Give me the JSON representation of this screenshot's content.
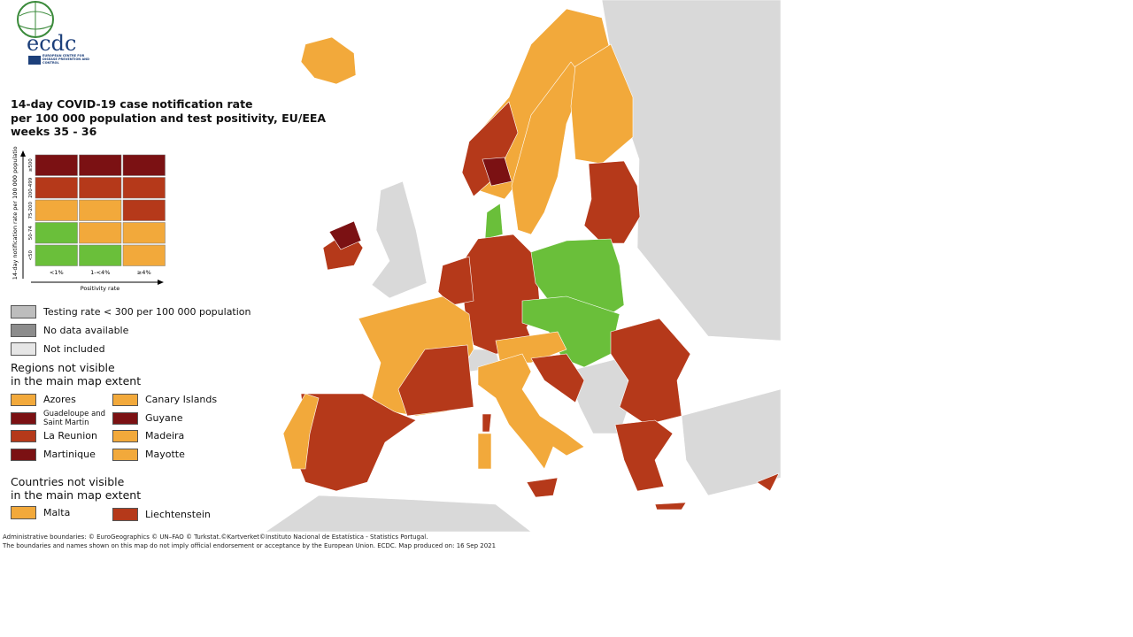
{
  "header": {
    "logo_text": "ecdc",
    "logo_subtitle": "EUROPEAN CENTRE FOR DISEASE PREVENTION AND CONTROL",
    "title": [
      "14-day COVID-19 case notification rate",
      "per 100 000 population and test positivity, EU/EEA",
      "weeks 35 - 36"
    ]
  },
  "matrix": {
    "y_axis_label": "14-day notification rate per 100 000 population",
    "rows": [
      "≥500",
      "200-499",
      "75-200",
      "50-74",
      "<50"
    ],
    "columns": [
      "<1%",
      "1-<4%",
      "≥4%"
    ],
    "x_axis_label": "Positivity rate",
    "cells": [
      [
        "#7b1113",
        "#7b1113",
        "#7b1113"
      ],
      [
        "#b5391a",
        "#b5391a",
        "#b5391a"
      ],
      [
        "#f2a93b",
        "#f2a93b",
        "#b5391a"
      ],
      [
        "#6abf3a",
        "#f2a93b",
        "#f2a93b"
      ],
      [
        "#6abf3a",
        "#6abf3a",
        "#f2a93b"
      ]
    ]
  },
  "legend": {
    "items": [
      {
        "label": "Testing rate < 300 per 100 000 population",
        "color": "#bdbdbd"
      },
      {
        "label": "No data available",
        "color": "#8c8c8c"
      },
      {
        "label": "Not included",
        "color": "#e6e6e6"
      }
    ],
    "regions_title": [
      "Regions not visible",
      "in the main map extent"
    ],
    "regions": [
      {
        "label": "Azores",
        "color": "#f2a93b"
      },
      {
        "label": "Canary Islands",
        "color": "#f2a93b"
      },
      {
        "label": "Guadeloupe and Saint Martin",
        "color": "#7b1113"
      },
      {
        "label": "Guyane",
        "color": "#7b1113"
      },
      {
        "label": "La Reunion",
        "color": "#b5391a"
      },
      {
        "label": "Madeira",
        "color": "#f2a93b"
      },
      {
        "label": "Martinique",
        "color": "#7b1113"
      },
      {
        "label": "Mayotte",
        "color": "#f2a93b"
      }
    ],
    "countries_title": [
      "Countries not visible",
      "in the main map extent"
    ],
    "countries": [
      {
        "label": "Malta",
        "color": "#f2a93b"
      },
      {
        "label": "Liechtenstein",
        "color": "#b5391a"
      }
    ]
  },
  "footer": [
    "Administrative boundaries: © EuroGeographics © UN–FAO © Turkstat.©Kartverket©Instituto Nacional de Estatística - Statistics Portugal.",
    "The boundaries and names shown on this map do not imply official endorsement or acceptance by the European Union. ECDC. Map produced on: 16 Sep 2021"
  ]
}
